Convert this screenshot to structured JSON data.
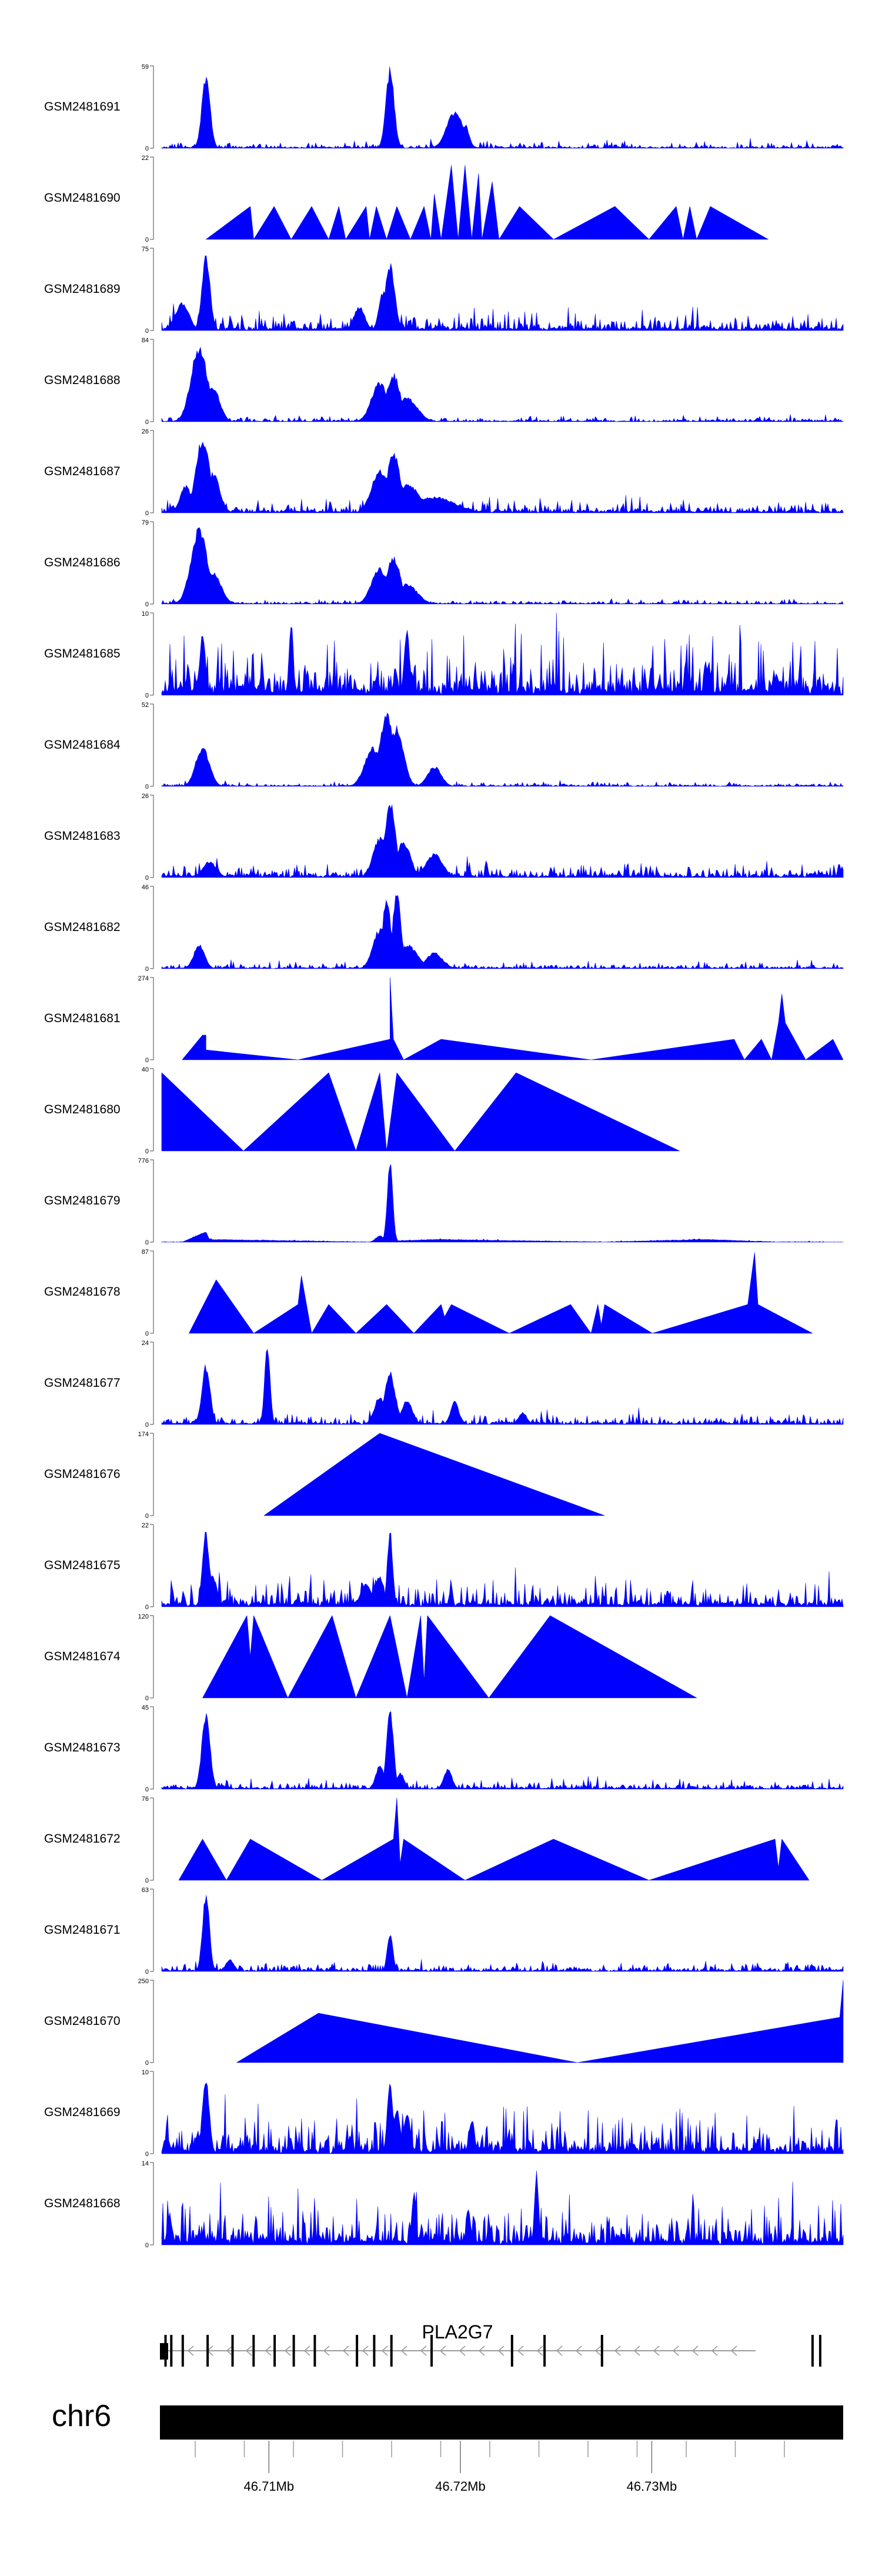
{
  "chart_data": {
    "type": "area",
    "color": "#0000ff",
    "chromosome": "chr6",
    "gene": {
      "name": "PLA2G7",
      "strand": "-"
    },
    "xlim_mb": [
      46.7044,
      46.74
    ],
    "xticks": [
      {
        "value": 46.71,
        "label": "46.71Mb"
      },
      {
        "value": 46.72,
        "label": "46.72Mb"
      },
      {
        "value": 46.73,
        "label": "46.73Mb"
      }
    ],
    "exons_mb": [
      46.7046,
      46.7049,
      46.7055,
      46.7068,
      46.7081,
      46.7092,
      46.7103,
      46.7113,
      46.7124,
      46.7146,
      46.7155,
      46.7164,
      46.7185,
      46.7244,
      46.7227,
      46.7274,
      46.7384,
      46.7388
    ],
    "tracks": [
      {
        "name": "GSM2481691",
        "ymax": "59",
        "kind": "peaky",
        "seed": 1,
        "noise": 0.06,
        "peaks": [
          [
            0.065,
            0.9,
            0.006
          ],
          [
            0.335,
            1.0,
            0.006
          ],
          [
            0.43,
            0.45,
            0.012
          ],
          [
            0.445,
            0.3,
            0.006
          ]
        ]
      },
      {
        "name": "GSM2481690",
        "ymax": "22",
        "kind": "tri",
        "pts": [
          [
            0.065,
            0
          ],
          [
            0.13,
            0.4
          ],
          [
            0.135,
            0
          ],
          [
            0.165,
            0.4
          ],
          [
            0.19,
            0
          ],
          [
            0.22,
            0.4
          ],
          [
            0.245,
            0
          ],
          [
            0.26,
            0.4
          ],
          [
            0.27,
            0
          ],
          [
            0.3,
            0.4
          ],
          [
            0.305,
            0
          ],
          [
            0.315,
            0.4
          ],
          [
            0.33,
            0
          ],
          [
            0.345,
            0.4
          ],
          [
            0.365,
            0
          ],
          [
            0.385,
            0.4
          ],
          [
            0.395,
            0
          ],
          [
            0.4,
            0.55
          ],
          [
            0.41,
            0
          ],
          [
            0.425,
            0.9
          ],
          [
            0.435,
            0
          ],
          [
            0.445,
            0.9
          ],
          [
            0.455,
            0
          ],
          [
            0.465,
            0.8
          ],
          [
            0.47,
            0
          ],
          [
            0.485,
            0.7
          ],
          [
            0.495,
            0
          ],
          [
            0.525,
            0.4
          ],
          [
            0.575,
            0
          ],
          [
            0.665,
            0.4
          ],
          [
            0.715,
            0
          ],
          [
            0.755,
            0.4
          ],
          [
            0.765,
            0
          ],
          [
            0.775,
            0.4
          ],
          [
            0.785,
            0
          ],
          [
            0.805,
            0.4
          ],
          [
            0.89,
            0
          ]
        ]
      },
      {
        "name": "GSM2481689",
        "ymax": "75",
        "kind": "peaky",
        "seed": 3,
        "noise": 0.18,
        "peaks": [
          [
            0.065,
            0.95,
            0.006
          ],
          [
            0.03,
            0.35,
            0.01
          ],
          [
            0.335,
            0.85,
            0.007
          ],
          [
            0.325,
            0.5,
            0.006
          ],
          [
            0.29,
            0.3,
            0.008
          ]
        ]
      },
      {
        "name": "GSM2481688",
        "ymax": "84",
        "kind": "peaky",
        "seed": 4,
        "noise": 0.05,
        "peaks": [
          [
            0.055,
            0.95,
            0.012
          ],
          [
            0.075,
            0.45,
            0.01
          ],
          [
            0.32,
            0.5,
            0.012
          ],
          [
            0.34,
            0.6,
            0.01
          ],
          [
            0.36,
            0.3,
            0.015
          ]
        ]
      },
      {
        "name": "GSM2481687",
        "ymax": "26",
        "kind": "peaky",
        "seed": 5,
        "noise": 0.12,
        "peaks": [
          [
            0.06,
            0.95,
            0.01
          ],
          [
            0.075,
            0.5,
            0.01
          ],
          [
            0.035,
            0.35,
            0.008
          ],
          [
            0.32,
            0.55,
            0.012
          ],
          [
            0.34,
            0.75,
            0.01
          ],
          [
            0.36,
            0.35,
            0.02
          ],
          [
            0.4,
            0.2,
            0.03
          ]
        ]
      },
      {
        "name": "GSM2481686",
        "ymax": "79",
        "kind": "peaky",
        "seed": 6,
        "noise": 0.04,
        "peaks": [
          [
            0.055,
            0.95,
            0.012
          ],
          [
            0.075,
            0.4,
            0.012
          ],
          [
            0.32,
            0.45,
            0.012
          ],
          [
            0.34,
            0.6,
            0.01
          ],
          [
            0.36,
            0.25,
            0.015
          ]
        ]
      },
      {
        "name": "GSM2481685",
        "ymax": "10",
        "kind": "peaky",
        "seed": 7,
        "noise": 0.55,
        "peaks": [
          [
            0.19,
            0.95,
            0.003
          ],
          [
            0.06,
            0.8,
            0.004
          ],
          [
            0.36,
            0.8,
            0.004
          ]
        ]
      },
      {
        "name": "GSM2481684",
        "ymax": "52",
        "kind": "peaky",
        "seed": 8,
        "noise": 0.04,
        "peaks": [
          [
            0.06,
            0.5,
            0.01
          ],
          [
            0.31,
            0.5,
            0.012
          ],
          [
            0.33,
            0.9,
            0.01
          ],
          [
            0.345,
            0.75,
            0.01
          ],
          [
            0.4,
            0.25,
            0.01
          ]
        ]
      },
      {
        "name": "GSM2481683",
        "ymax": "26",
        "kind": "peaky",
        "seed": 9,
        "noise": 0.14,
        "peaks": [
          [
            0.335,
            0.95,
            0.008
          ],
          [
            0.32,
            0.5,
            0.01
          ],
          [
            0.355,
            0.45,
            0.01
          ],
          [
            0.4,
            0.3,
            0.012
          ],
          [
            0.07,
            0.2,
            0.01
          ]
        ]
      },
      {
        "name": "GSM2481682",
        "ymax": "46",
        "kind": "peaky",
        "seed": 10,
        "noise": 0.06,
        "peaks": [
          [
            0.055,
            0.3,
            0.008
          ],
          [
            0.32,
            0.5,
            0.01
          ],
          [
            0.33,
            0.9,
            0.006
          ],
          [
            0.345,
            0.95,
            0.006
          ],
          [
            0.36,
            0.3,
            0.015
          ],
          [
            0.4,
            0.2,
            0.012
          ]
        ]
      },
      {
        "name": "GSM2481681",
        "ymax": "274",
        "kind": "tri",
        "pts": [
          [
            0.03,
            0
          ],
          [
            0.06,
            0.3
          ],
          [
            0.065,
            0.3
          ],
          [
            0.065,
            0.12
          ],
          [
            0.2,
            0
          ],
          [
            0.335,
            0.25
          ],
          [
            0.335,
            1.0
          ],
          [
            0.34,
            0.25
          ],
          [
            0.355,
            0
          ],
          [
            0.41,
            0.25
          ],
          [
            0.63,
            0
          ],
          [
            0.84,
            0.25
          ],
          [
            0.855,
            0
          ],
          [
            0.88,
            0.25
          ],
          [
            0.895,
            0
          ],
          [
            0.905,
            0.45
          ],
          [
            0.91,
            0.8
          ],
          [
            0.915,
            0.45
          ],
          [
            0.945,
            0
          ],
          [
            0.985,
            0.25
          ],
          [
            1.0,
            0
          ]
        ]
      },
      {
        "name": "GSM2481680",
        "ymax": "40",
        "kind": "tri",
        "pts": [
          [
            0.0,
            0
          ],
          [
            0.0,
            0.95
          ],
          [
            0.12,
            0
          ],
          [
            0.245,
            0.95
          ],
          [
            0.285,
            0
          ],
          [
            0.32,
            0.95
          ],
          [
            0.33,
            0
          ],
          [
            0.345,
            0.95
          ],
          [
            0.43,
            0
          ],
          [
            0.52,
            0.95
          ],
          [
            0.76,
            0
          ]
        ]
      },
      {
        "name": "GSM2481679",
        "ymax": "776",
        "kind": "peaky",
        "seed": 13,
        "noise": 0.02,
        "base": [
          [
            0.03,
            0
          ],
          [
            0.065,
            0.12
          ],
          [
            0.07,
            0.03
          ],
          [
            0.3,
            0
          ],
          [
            0.4,
            0.03
          ],
          [
            0.65,
            0
          ],
          [
            0.8,
            0.03
          ],
          [
            0.9,
            0
          ]
        ],
        "peaks": [
          [
            0.335,
            1.0,
            0.004
          ],
          [
            0.32,
            0.08,
            0.006
          ]
        ]
      },
      {
        "name": "GSM2481678",
        "ymax": "87",
        "kind": "tri",
        "pts": [
          [
            0.04,
            0
          ],
          [
            0.08,
            0.65
          ],
          [
            0.135,
            0
          ],
          [
            0.2,
            0.35
          ],
          [
            0.205,
            0.7
          ],
          [
            0.22,
            0
          ],
          [
            0.245,
            0.35
          ],
          [
            0.285,
            0
          ],
          [
            0.33,
            0.35
          ],
          [
            0.37,
            0
          ],
          [
            0.41,
            0.35
          ],
          [
            0.415,
            0.2
          ],
          [
            0.425,
            0.35
          ],
          [
            0.51,
            0
          ],
          [
            0.6,
            0.35
          ],
          [
            0.63,
            0
          ],
          [
            0.64,
            0.35
          ],
          [
            0.645,
            0.1
          ],
          [
            0.65,
            0.35
          ],
          [
            0.72,
            0
          ],
          [
            0.86,
            0.35
          ],
          [
            0.87,
            0.98
          ],
          [
            0.875,
            0.35
          ],
          [
            0.955,
            0
          ]
        ]
      },
      {
        "name": "GSM2481677",
        "ymax": "24",
        "kind": "peaky",
        "seed": 15,
        "noise": 0.1,
        "peaks": [
          [
            0.065,
            0.75,
            0.006
          ],
          [
            0.155,
            1.0,
            0.004
          ],
          [
            0.335,
            0.65,
            0.008
          ],
          [
            0.32,
            0.35,
            0.008
          ],
          [
            0.36,
            0.3,
            0.008
          ],
          [
            0.43,
            0.3,
            0.006
          ],
          [
            0.53,
            0.15,
            0.006
          ]
        ]
      },
      {
        "name": "GSM2481676",
        "ymax": "174",
        "kind": "tri",
        "pts": [
          [
            0.15,
            0
          ],
          [
            0.32,
            1.0
          ],
          [
            0.65,
            0
          ]
        ]
      },
      {
        "name": "GSM2481675",
        "ymax": "22",
        "kind": "peaky",
        "seed": 17,
        "noise": 0.25,
        "peaks": [
          [
            0.065,
            0.95,
            0.005
          ],
          [
            0.075,
            0.4,
            0.006
          ],
          [
            0.335,
            0.95,
            0.004
          ],
          [
            0.3,
            0.3,
            0.008
          ],
          [
            0.32,
            0.4,
            0.006
          ]
        ]
      },
      {
        "name": "GSM2481674",
        "ymax": "120",
        "kind": "tri",
        "pts": [
          [
            0.06,
            0
          ],
          [
            0.125,
            1.0
          ],
          [
            0.13,
            0.5
          ],
          [
            0.135,
            1.0
          ],
          [
            0.185,
            0
          ],
          [
            0.25,
            1.0
          ],
          [
            0.285,
            0
          ],
          [
            0.335,
            1.0
          ],
          [
            0.36,
            0
          ],
          [
            0.38,
            1.0
          ],
          [
            0.385,
            0.2
          ],
          [
            0.39,
            1.0
          ],
          [
            0.48,
            0
          ],
          [
            0.57,
            1.0
          ],
          [
            0.785,
            0
          ]
        ]
      },
      {
        "name": "GSM2481673",
        "ymax": "45",
        "kind": "peaky",
        "seed": 19,
        "noise": 0.08,
        "peaks": [
          [
            0.065,
            0.95,
            0.006
          ],
          [
            0.335,
            1.0,
            0.005
          ],
          [
            0.32,
            0.3,
            0.006
          ],
          [
            0.42,
            0.25,
            0.006
          ],
          [
            0.35,
            0.2,
            0.006
          ]
        ]
      },
      {
        "name": "GSM2481672",
        "ymax": "76",
        "kind": "tri",
        "pts": [
          [
            0.025,
            0
          ],
          [
            0.06,
            0.5
          ],
          [
            0.095,
            0
          ],
          [
            0.13,
            0.5
          ],
          [
            0.235,
            0
          ],
          [
            0.34,
            0.5
          ],
          [
            0.345,
            1.0
          ],
          [
            0.35,
            0.2
          ],
          [
            0.355,
            0.5
          ],
          [
            0.445,
            0
          ],
          [
            0.575,
            0.5
          ],
          [
            0.715,
            0
          ],
          [
            0.9,
            0.5
          ],
          [
            0.905,
            0.15
          ],
          [
            0.91,
            0.5
          ],
          [
            0.95,
            0
          ]
        ]
      },
      {
        "name": "GSM2481671",
        "ymax": "63",
        "kind": "peaky",
        "seed": 21,
        "noise": 0.08,
        "peaks": [
          [
            0.065,
            1.0,
            0.005
          ],
          [
            0.335,
            0.5,
            0.004
          ],
          [
            0.1,
            0.15,
            0.006
          ]
        ]
      },
      {
        "name": "GSM2481670",
        "ymax": "250",
        "kind": "tri",
        "pts": [
          [
            0.11,
            0
          ],
          [
            0.23,
            0.6
          ],
          [
            0.61,
            0
          ],
          [
            0.995,
            0.55
          ],
          [
            1.0,
            1.0
          ],
          [
            1.0,
            0
          ]
        ]
      },
      {
        "name": "GSM2481669",
        "ymax": "10",
        "kind": "peaky",
        "seed": 23,
        "noise": 0.38,
        "peaks": [
          [
            0.065,
            0.95,
            0.005
          ],
          [
            0.335,
            0.95,
            0.004
          ],
          [
            0.345,
            0.6,
            0.005
          ],
          [
            0.36,
            0.5,
            0.005
          ],
          [
            0.455,
            0.45,
            0.004
          ]
        ]
      },
      {
        "name": "GSM2481668",
        "ymax": "14",
        "kind": "peaky",
        "seed": 24,
        "noise": 0.38,
        "peaks": [
          [
            0.55,
            0.95,
            0.003
          ],
          [
            0.37,
            0.7,
            0.003
          ],
          [
            0.45,
            0.5,
            0.003
          ]
        ]
      }
    ]
  }
}
